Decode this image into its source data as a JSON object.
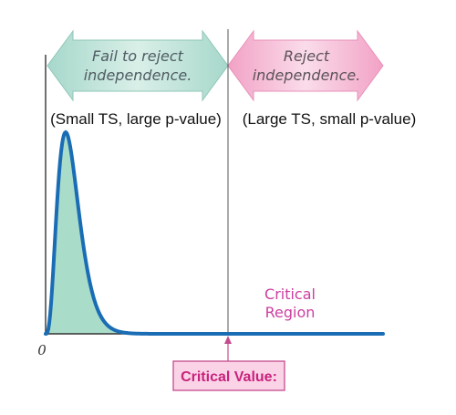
{
  "arrows": {
    "left": {
      "line1": "Fail to reject",
      "line2": "independence.",
      "color": "#8fcdbf"
    },
    "right": {
      "line1": "Reject",
      "line2": "independence.",
      "color": "#f4a6c8"
    }
  },
  "notes": {
    "left": "(Small TS, large p-value)",
    "right": "(Large TS, small p-value)"
  },
  "region": {
    "line1": "Critical",
    "line2": "Region"
  },
  "axis": {
    "origin": "0"
  },
  "critical_value": {
    "label": "Critical Value:"
  },
  "colors": {
    "curve": "#1a6db5",
    "fill_left": "#a9dcc9",
    "fill_right": "#f8c6dd",
    "label_box_fill": "#fbd3e6",
    "label_box_stroke": "#c44c8e"
  }
}
